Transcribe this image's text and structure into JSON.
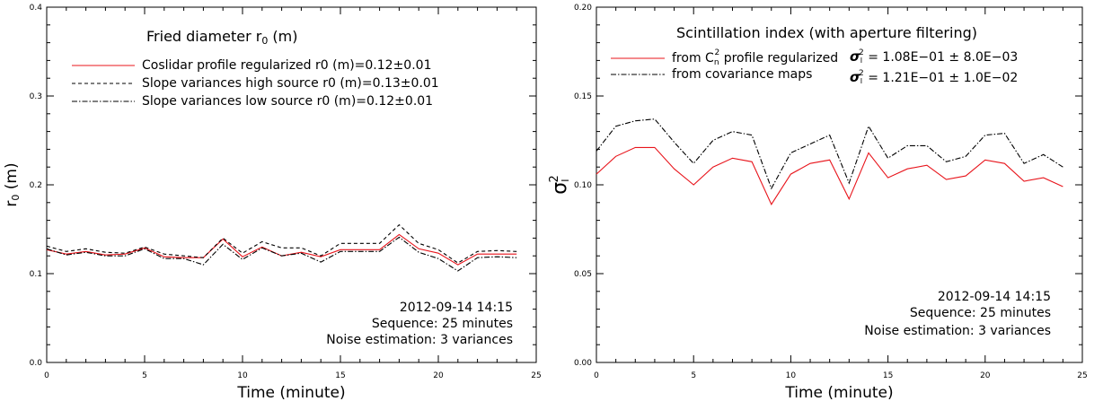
{
  "colors": {
    "red": "#e8141b",
    "black": "#000000"
  },
  "chart_data": [
    {
      "type": "line",
      "title": "Fried diameter r",
      "title_subscript": "0",
      "title_suffix": " (m)",
      "xlabel": "Time (minute)",
      "ylabel": "r0 (m)",
      "ylabel_main": "r",
      "ylabel_sub": "0",
      "ylabel_suffix": " (m)",
      "xlim": [
        0,
        25
      ],
      "ylim": [
        0.0,
        0.4
      ],
      "xticks": [
        0,
        5,
        10,
        15,
        20,
        25
      ],
      "yticks": [
        0.0,
        0.1,
        0.2,
        0.3,
        0.4
      ],
      "ytick_labels": [
        "0.0",
        "0.1",
        "0.2",
        "0.3",
        "0.4"
      ],
      "grid": false,
      "legend_position": "top-left",
      "x": [
        0,
        1,
        2,
        3,
        4,
        5,
        6,
        7,
        8,
        9,
        10,
        11,
        12,
        13,
        14,
        15,
        16,
        17,
        18,
        19,
        20,
        21,
        22,
        23,
        24
      ],
      "series": [
        {
          "name": "Coslidar profile  regularized  r0 (m)=0.12±0.01",
          "style": "solid",
          "color": "#e8141b",
          "values": [
            0.127,
            0.122,
            0.125,
            0.121,
            0.122,
            0.129,
            0.119,
            0.118,
            0.118,
            0.139,
            0.119,
            0.13,
            0.12,
            0.124,
            0.119,
            0.127,
            0.127,
            0.127,
            0.144,
            0.128,
            0.123,
            0.11,
            0.122,
            0.122,
            0.122
          ]
        },
        {
          "name": "Slope variances high source r0 (m)=0.13±0.01",
          "style": "dashed",
          "color": "#000000",
          "values": [
            0.131,
            0.125,
            0.128,
            0.124,
            0.123,
            0.13,
            0.122,
            0.12,
            0.118,
            0.14,
            0.123,
            0.136,
            0.129,
            0.129,
            0.12,
            0.134,
            0.134,
            0.134,
            0.155,
            0.134,
            0.127,
            0.112,
            0.125,
            0.126,
            0.125
          ]
        },
        {
          "name": "Slope variances low source  r0 (m)=0.12±0.01",
          "style": "dashdot",
          "color": "#000000",
          "values": [
            0.128,
            0.121,
            0.124,
            0.12,
            0.12,
            0.128,
            0.117,
            0.117,
            0.11,
            0.133,
            0.116,
            0.129,
            0.12,
            0.123,
            0.113,
            0.125,
            0.125,
            0.125,
            0.141,
            0.124,
            0.117,
            0.103,
            0.118,
            0.119,
            0.118
          ]
        }
      ],
      "annotations": [
        "2012-09-14 14:15",
        "Sequence: 25 minutes",
        "Noise estimation: 3 variances"
      ]
    },
    {
      "type": "line",
      "title": "Scintillation index (with aperture filtering)",
      "xlabel": "Time (minute)",
      "ylabel": "σI²",
      "ylabel_main": "σ",
      "ylabel_sub": "I",
      "ylabel_sup": "2",
      "xlim": [
        0,
        25
      ],
      "ylim": [
        0.0,
        0.2
      ],
      "xticks": [
        0,
        5,
        10,
        15,
        20,
        25
      ],
      "yticks": [
        0.0,
        0.05,
        0.1,
        0.15,
        0.2
      ],
      "ytick_labels": [
        "0.00",
        "0.05",
        "0.10",
        "0.15",
        "0.20"
      ],
      "grid": false,
      "legend_position": "top-left",
      "x": [
        0,
        1,
        2,
        3,
        4,
        5,
        6,
        7,
        8,
        9,
        10,
        11,
        12,
        13,
        14,
        15,
        16,
        17,
        18,
        19,
        20,
        21,
        22,
        23,
        24
      ],
      "series": [
        {
          "name": "from Cn² profile  regularized",
          "name_pre": "from C",
          "name_sub": "n",
          "name_sup": "2",
          "name_post": " profile  regularized",
          "stat": "σI² = 1.08E−01 ± 8.0E−03",
          "stat_value": "= 1.08E−01 ± 8.0E−03",
          "style": "solid",
          "color": "#e8141b",
          "values": [
            0.106,
            0.116,
            0.121,
            0.121,
            0.109,
            0.1,
            0.11,
            0.115,
            0.113,
            0.089,
            0.106,
            0.112,
            0.114,
            0.092,
            0.118,
            0.104,
            0.109,
            0.111,
            0.103,
            0.105,
            0.114,
            0.112,
            0.102,
            0.104,
            0.099
          ]
        },
        {
          "name": "from covariance maps",
          "stat": "σI² = 1.21E−01 ± 1.0E−02",
          "stat_value": "= 1.21E−01 ± 1.0E−02",
          "style": "dashdot",
          "color": "#000000",
          "values": [
            0.119,
            0.133,
            0.136,
            0.137,
            0.124,
            0.112,
            0.125,
            0.13,
            0.128,
            0.098,
            0.118,
            0.123,
            0.128,
            0.101,
            0.133,
            0.115,
            0.122,
            0.122,
            0.113,
            0.116,
            0.128,
            0.129,
            0.112,
            0.117,
            0.11
          ]
        }
      ],
      "annotations": [
        "2012-09-14 14:15",
        "Sequence: 25 minutes",
        "Noise estimation: 3 variances"
      ]
    }
  ]
}
